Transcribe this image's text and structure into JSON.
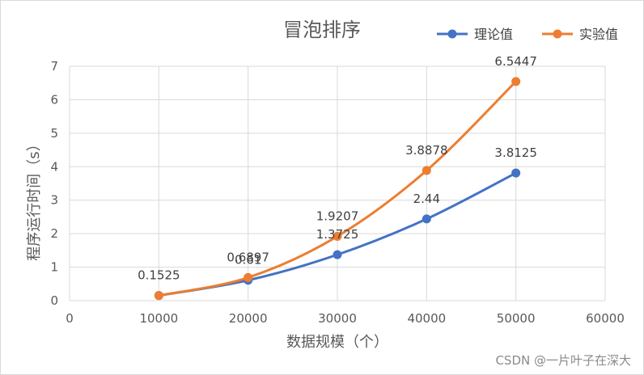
{
  "chart_data": {
    "type": "line",
    "title": "冒泡排序",
    "xlabel": "数据规模（个）",
    "ylabel": "程序运行时间（s）",
    "xlim": [
      0,
      60000
    ],
    "ylim": [
      0,
      7
    ],
    "xticks": [
      "0",
      "10000",
      "20000",
      "30000",
      "40000",
      "50000",
      "60000"
    ],
    "yticks": [
      "0",
      "1",
      "2",
      "3",
      "4",
      "5",
      "6",
      "7"
    ],
    "grid": true,
    "legend_position": "top-right",
    "series": [
      {
        "name": "理论值",
        "color": "#4472C4",
        "x": [
          10000,
          20000,
          30000,
          40000,
          50000
        ],
        "values": [
          0.1525,
          0.61,
          1.3725,
          2.44,
          3.8125
        ],
        "labels": [
          "0.1525",
          "0.61",
          "1.3725",
          "2.44",
          "3.8125"
        ]
      },
      {
        "name": "实验值",
        "color": "#ED7D31",
        "x": [
          10000,
          20000,
          30000,
          40000,
          50000
        ],
        "values": [
          0.1525,
          0.6897,
          1.9207,
          3.8878,
          6.5447
        ],
        "labels": [
          "",
          "0.6897",
          "1.9207",
          "3.8878",
          "6.5447"
        ]
      }
    ]
  },
  "watermark": "CSDN @一片叶子在深大"
}
